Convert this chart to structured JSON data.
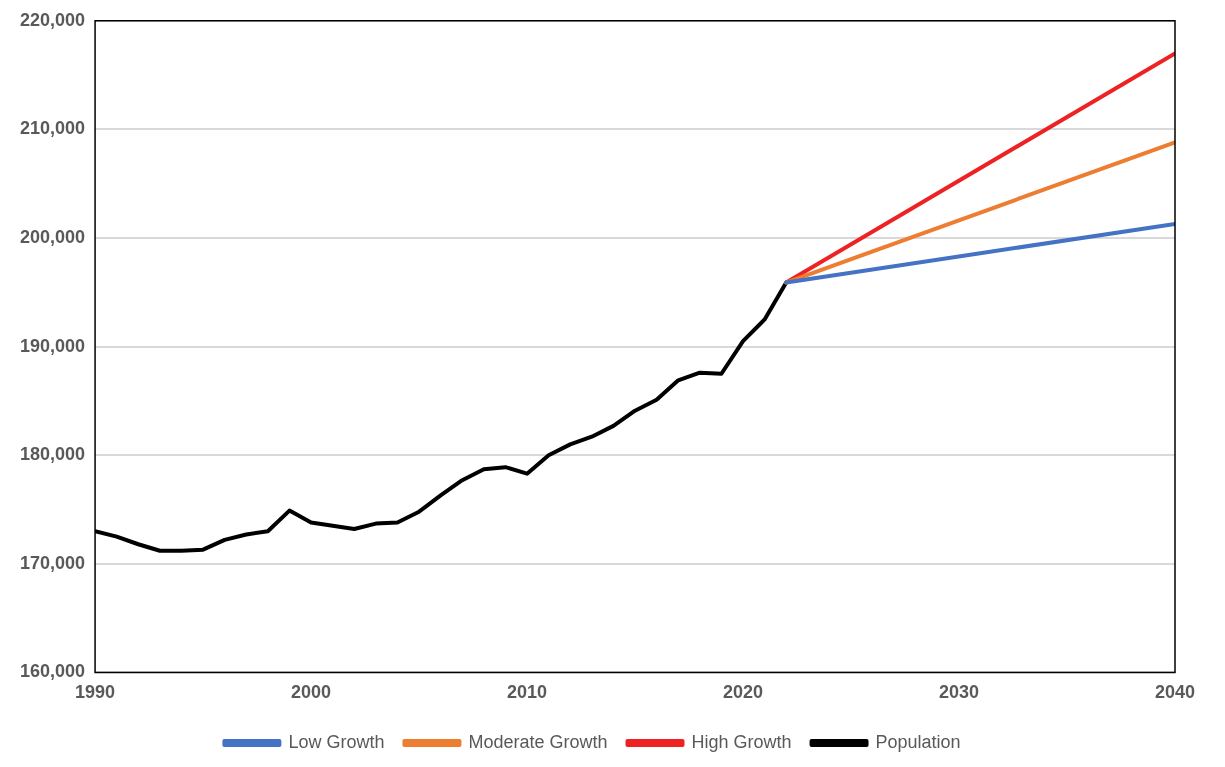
{
  "chart_data": {
    "type": "line",
    "xlim": [
      1990,
      2040
    ],
    "xticks": [
      1990,
      2000,
      2010,
      2020,
      2030,
      2040
    ],
    "ylim": [
      160000,
      220000
    ],
    "yticks": [
      {
        "value": 160000,
        "label": "160,000"
      },
      {
        "value": 170000,
        "label": "170,000"
      },
      {
        "value": 180000,
        "label": "180,000"
      },
      {
        "value": 190000,
        "label": "190,000"
      },
      {
        "value": 200000,
        "label": "200,000"
      },
      {
        "value": 210000,
        "label": "210,000"
      },
      {
        "value": 220000,
        "label": "220,000"
      }
    ],
    "grid": "y",
    "legend": "bottom",
    "marker": "none",
    "line_style": "solid",
    "series": [
      {
        "name": "Low Growth",
        "color": "#4472c4",
        "x": [
          2022,
          2040
        ],
        "values": [
          195900,
          201300
        ]
      },
      {
        "name": "Moderate Growth",
        "color": "#ed7d31",
        "x": [
          2022,
          2040
        ],
        "values": [
          195900,
          208800
        ]
      },
      {
        "name": "High Growth",
        "color": "#ee2222",
        "x": [
          2022,
          2040
        ],
        "values": [
          195900,
          217000
        ]
      },
      {
        "name": "Population",
        "color": "#000000",
        "x": [
          1990,
          1991,
          1992,
          1993,
          1994,
          1995,
          1996,
          1997,
          1998,
          1999,
          2000,
          2001,
          2002,
          2003,
          2004,
          2005,
          2006,
          2007,
          2008,
          2009,
          2010,
          2011,
          2012,
          2013,
          2014,
          2015,
          2016,
          2017,
          2018,
          2019,
          2020,
          2021,
          2022
        ],
        "values": [
          173000,
          172500,
          171800,
          171200,
          171200,
          171300,
          172200,
          172700,
          173000,
          174900,
          173800,
          173500,
          173200,
          173700,
          173800,
          174800,
          176300,
          177700,
          178700,
          178900,
          178300,
          180000,
          181000,
          181700,
          182700,
          184100,
          185100,
          186900,
          187600,
          187500,
          190500,
          192500,
          195900
        ]
      }
    ]
  }
}
